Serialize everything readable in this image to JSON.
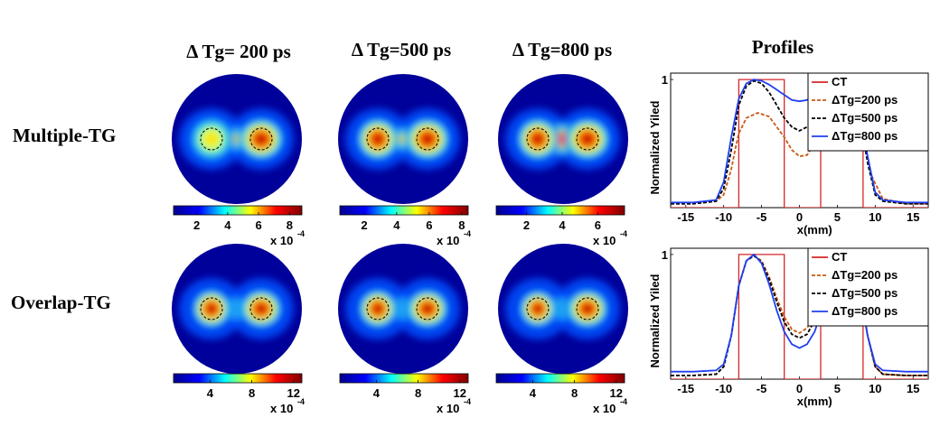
{
  "column_titles": [
    "Δ Tg= 200 ps",
    "Δ Tg=500 ps",
    "Δ Tg=800 ps"
  ],
  "profiles_title": "Profiles",
  "row_labels": [
    "Multiple-TG",
    "Overlap-TG"
  ],
  "colormap": {
    "name": "jet",
    "stops": [
      "#00008f",
      "#0000ff",
      "#00ffff",
      "#ffff00",
      "#ff0000",
      "#800000"
    ],
    "background": "#00009a",
    "exponent_base": "x 10",
    "exponent_power": "-4"
  },
  "colorbars": [
    {
      "row": "Multiple-TG",
      "column": "Δ Tg= 200 ps",
      "ticks": [
        "2",
        "4",
        "6",
        "8"
      ],
      "tick_values": [
        2,
        4,
        6,
        8
      ],
      "range": [
        0.5,
        8.8
      ]
    },
    {
      "row": "Multiple-TG",
      "column": "Δ Tg=500 ps",
      "ticks": [
        "2",
        "4",
        "6",
        "8"
      ],
      "tick_values": [
        2,
        4,
        6,
        8
      ],
      "range": [
        0.5,
        8.4
      ]
    },
    {
      "row": "Multiple-TG",
      "column": "Δ Tg=800 ps",
      "ticks": [
        "2",
        "4",
        "6"
      ],
      "tick_values": [
        2,
        4,
        6
      ],
      "range": [
        0.3,
        7.5
      ]
    },
    {
      "row": "Overlap-TG",
      "column": "Δ Tg= 200 ps",
      "ticks": [
        "4",
        "8",
        "12"
      ],
      "tick_values": [
        4,
        8,
        12
      ],
      "range": [
        0.5,
        12.8
      ]
    },
    {
      "row": "Overlap-TG",
      "column": "Δ Tg=500 ps",
      "ticks": [
        "4",
        "8",
        "12"
      ],
      "tick_values": [
        4,
        8,
        12
      ],
      "range": [
        0.5,
        12.8
      ]
    },
    {
      "row": "Overlap-TG",
      "column": "Δ Tg=800 ps",
      "ticks": [
        "4",
        "8",
        "12"
      ],
      "tick_values": [
        4,
        8,
        12
      ],
      "range": [
        0.5,
        12.8
      ]
    }
  ],
  "chart_data": [
    {
      "type": "line",
      "row": "Multiple-TG",
      "xlabel": "x(mm)",
      "ylabel": "Normalized Yiled",
      "x_ticks": [
        "-15",
        "-10",
        "-5",
        "0",
        "5",
        "10",
        "15"
      ],
      "x_tick_values": [
        -15,
        -10,
        -5,
        0,
        5,
        10,
        15
      ],
      "y_ticks": [
        "1"
      ],
      "xlim": [
        -17,
        17
      ],
      "ylim": [
        0,
        1.05
      ],
      "legend_position": "top-right",
      "series": [
        {
          "name": "CT",
          "color": "#d62728",
          "dash": "solid",
          "x": [
            -17,
            -8,
            -8,
            -2,
            -2,
            2.8,
            2.8,
            8.4,
            8.4,
            17
          ],
          "y": [
            0,
            0,
            1,
            1,
            0,
            0,
            1,
            1,
            0,
            0
          ]
        },
        {
          "name": "ΔTg=200 ps",
          "color": "#c85a14",
          "dash": "dash",
          "x": [
            -17,
            -14,
            -11,
            -10,
            -9,
            -8.5,
            -8,
            -7,
            -5.5,
            -4,
            -2,
            -1,
            0,
            1,
            2,
            3,
            4,
            5,
            5.8,
            6.5,
            7.5,
            8.5,
            9.5,
            11,
            14,
            17
          ],
          "y": [
            0.03,
            0.03,
            0.05,
            0.1,
            0.3,
            0.45,
            0.58,
            0.7,
            0.74,
            0.71,
            0.55,
            0.45,
            0.4,
            0.41,
            0.5,
            0.68,
            0.85,
            0.96,
            1.0,
            0.98,
            0.85,
            0.55,
            0.25,
            0.07,
            0.03,
            0.03
          ]
        },
        {
          "name": "ΔTg=500 ps",
          "color": "#000000",
          "dash": "dash",
          "x": [
            -17,
            -14,
            -11,
            -10,
            -9,
            -8,
            -7,
            -6,
            -5,
            -4,
            -3,
            -2,
            -1,
            0,
            1,
            2,
            3,
            4,
            5,
            6,
            7,
            8,
            9,
            10,
            11,
            14,
            17
          ],
          "y": [
            0.03,
            0.03,
            0.05,
            0.15,
            0.45,
            0.8,
            0.95,
            0.99,
            0.97,
            0.9,
            0.8,
            0.7,
            0.63,
            0.6,
            0.63,
            0.7,
            0.82,
            0.92,
            0.98,
            0.99,
            0.93,
            0.7,
            0.35,
            0.1,
            0.05,
            0.03,
            0.03
          ]
        },
        {
          "name": "ΔTg=800 ps",
          "color": "#1f3ff0",
          "dash": "solid",
          "x": [
            -17,
            -14,
            -11,
            -10,
            -9,
            -8,
            -7,
            -6,
            -5,
            -4,
            -3,
            -2,
            -1,
            0,
            1,
            2,
            3,
            4,
            5,
            6,
            7,
            8,
            9,
            10,
            11,
            14,
            17
          ],
          "y": [
            0.04,
            0.04,
            0.06,
            0.2,
            0.55,
            0.85,
            0.97,
            1.0,
            0.99,
            0.96,
            0.92,
            0.88,
            0.84,
            0.83,
            0.84,
            0.88,
            0.93,
            0.97,
            1.0,
            0.99,
            0.94,
            0.75,
            0.4,
            0.12,
            0.06,
            0.04,
            0.04
          ]
        }
      ]
    },
    {
      "type": "line",
      "row": "Overlap-TG",
      "xlabel": "x(mm)",
      "ylabel": "Normalized Yiled",
      "x_ticks": [
        "-15",
        "-10",
        "-5",
        "0",
        "5",
        "10",
        "15"
      ],
      "x_tick_values": [
        -15,
        -10,
        -5,
        0,
        5,
        10,
        15
      ],
      "y_ticks": [
        "1"
      ],
      "xlim": [
        -17,
        17
      ],
      "ylim": [
        0,
        1.05
      ],
      "legend_position": "top-right",
      "series": [
        {
          "name": "CT",
          "color": "#d62728",
          "dash": "solid",
          "x": [
            -17,
            -8,
            -8,
            -2,
            -2,
            2.8,
            2.8,
            8.4,
            8.4,
            17
          ],
          "y": [
            0,
            0,
            1,
            1,
            0,
            0,
            1,
            1,
            0,
            0
          ]
        },
        {
          "name": "ΔTg=200 ps",
          "color": "#c85a14",
          "dash": "dash",
          "x": [
            -17,
            -14,
            -11,
            -10,
            -9,
            -8,
            -7,
            -6,
            -5,
            -4,
            -3,
            -2,
            -1,
            0,
            1,
            2,
            3,
            4,
            5,
            6,
            7,
            8,
            9,
            10,
            11,
            14,
            17
          ],
          "y": [
            0.03,
            0.03,
            0.04,
            0.1,
            0.35,
            0.75,
            0.95,
            0.99,
            0.95,
            0.82,
            0.65,
            0.5,
            0.4,
            0.37,
            0.41,
            0.52,
            0.68,
            0.85,
            0.97,
            0.99,
            0.92,
            0.7,
            0.35,
            0.1,
            0.04,
            0.03,
            0.03
          ]
        },
        {
          "name": "ΔTg=500 ps",
          "color": "#000000",
          "dash": "dash",
          "x": [
            -17,
            -14,
            -11,
            -10,
            -9,
            -8,
            -7,
            -6,
            -5,
            -4,
            -3,
            -2,
            -1,
            0,
            1,
            2,
            3,
            4,
            5,
            6,
            7,
            8,
            9,
            10,
            11,
            14,
            17
          ],
          "y": [
            0.03,
            0.03,
            0.04,
            0.1,
            0.35,
            0.75,
            0.95,
            0.99,
            0.94,
            0.8,
            0.62,
            0.46,
            0.36,
            0.33,
            0.36,
            0.47,
            0.64,
            0.83,
            0.96,
            0.99,
            0.92,
            0.7,
            0.35,
            0.1,
            0.04,
            0.03,
            0.03
          ]
        },
        {
          "name": "ΔTg=800 ps",
          "color": "#1f3ff0",
          "dash": "solid",
          "x": [
            -17,
            -14,
            -11,
            -10,
            -9,
            -8,
            -7,
            -6,
            -5,
            -4,
            -3,
            -2,
            -1,
            0,
            1,
            2,
            3,
            4,
            5,
            6,
            7,
            8,
            9,
            10,
            11,
            14,
            17
          ],
          "y": [
            0.06,
            0.06,
            0.07,
            0.12,
            0.35,
            0.75,
            0.95,
            1.0,
            0.93,
            0.76,
            0.55,
            0.38,
            0.28,
            0.25,
            0.28,
            0.38,
            0.56,
            0.78,
            0.94,
            1.0,
            0.93,
            0.7,
            0.35,
            0.12,
            0.07,
            0.06,
            0.06
          ]
        }
      ]
    }
  ]
}
